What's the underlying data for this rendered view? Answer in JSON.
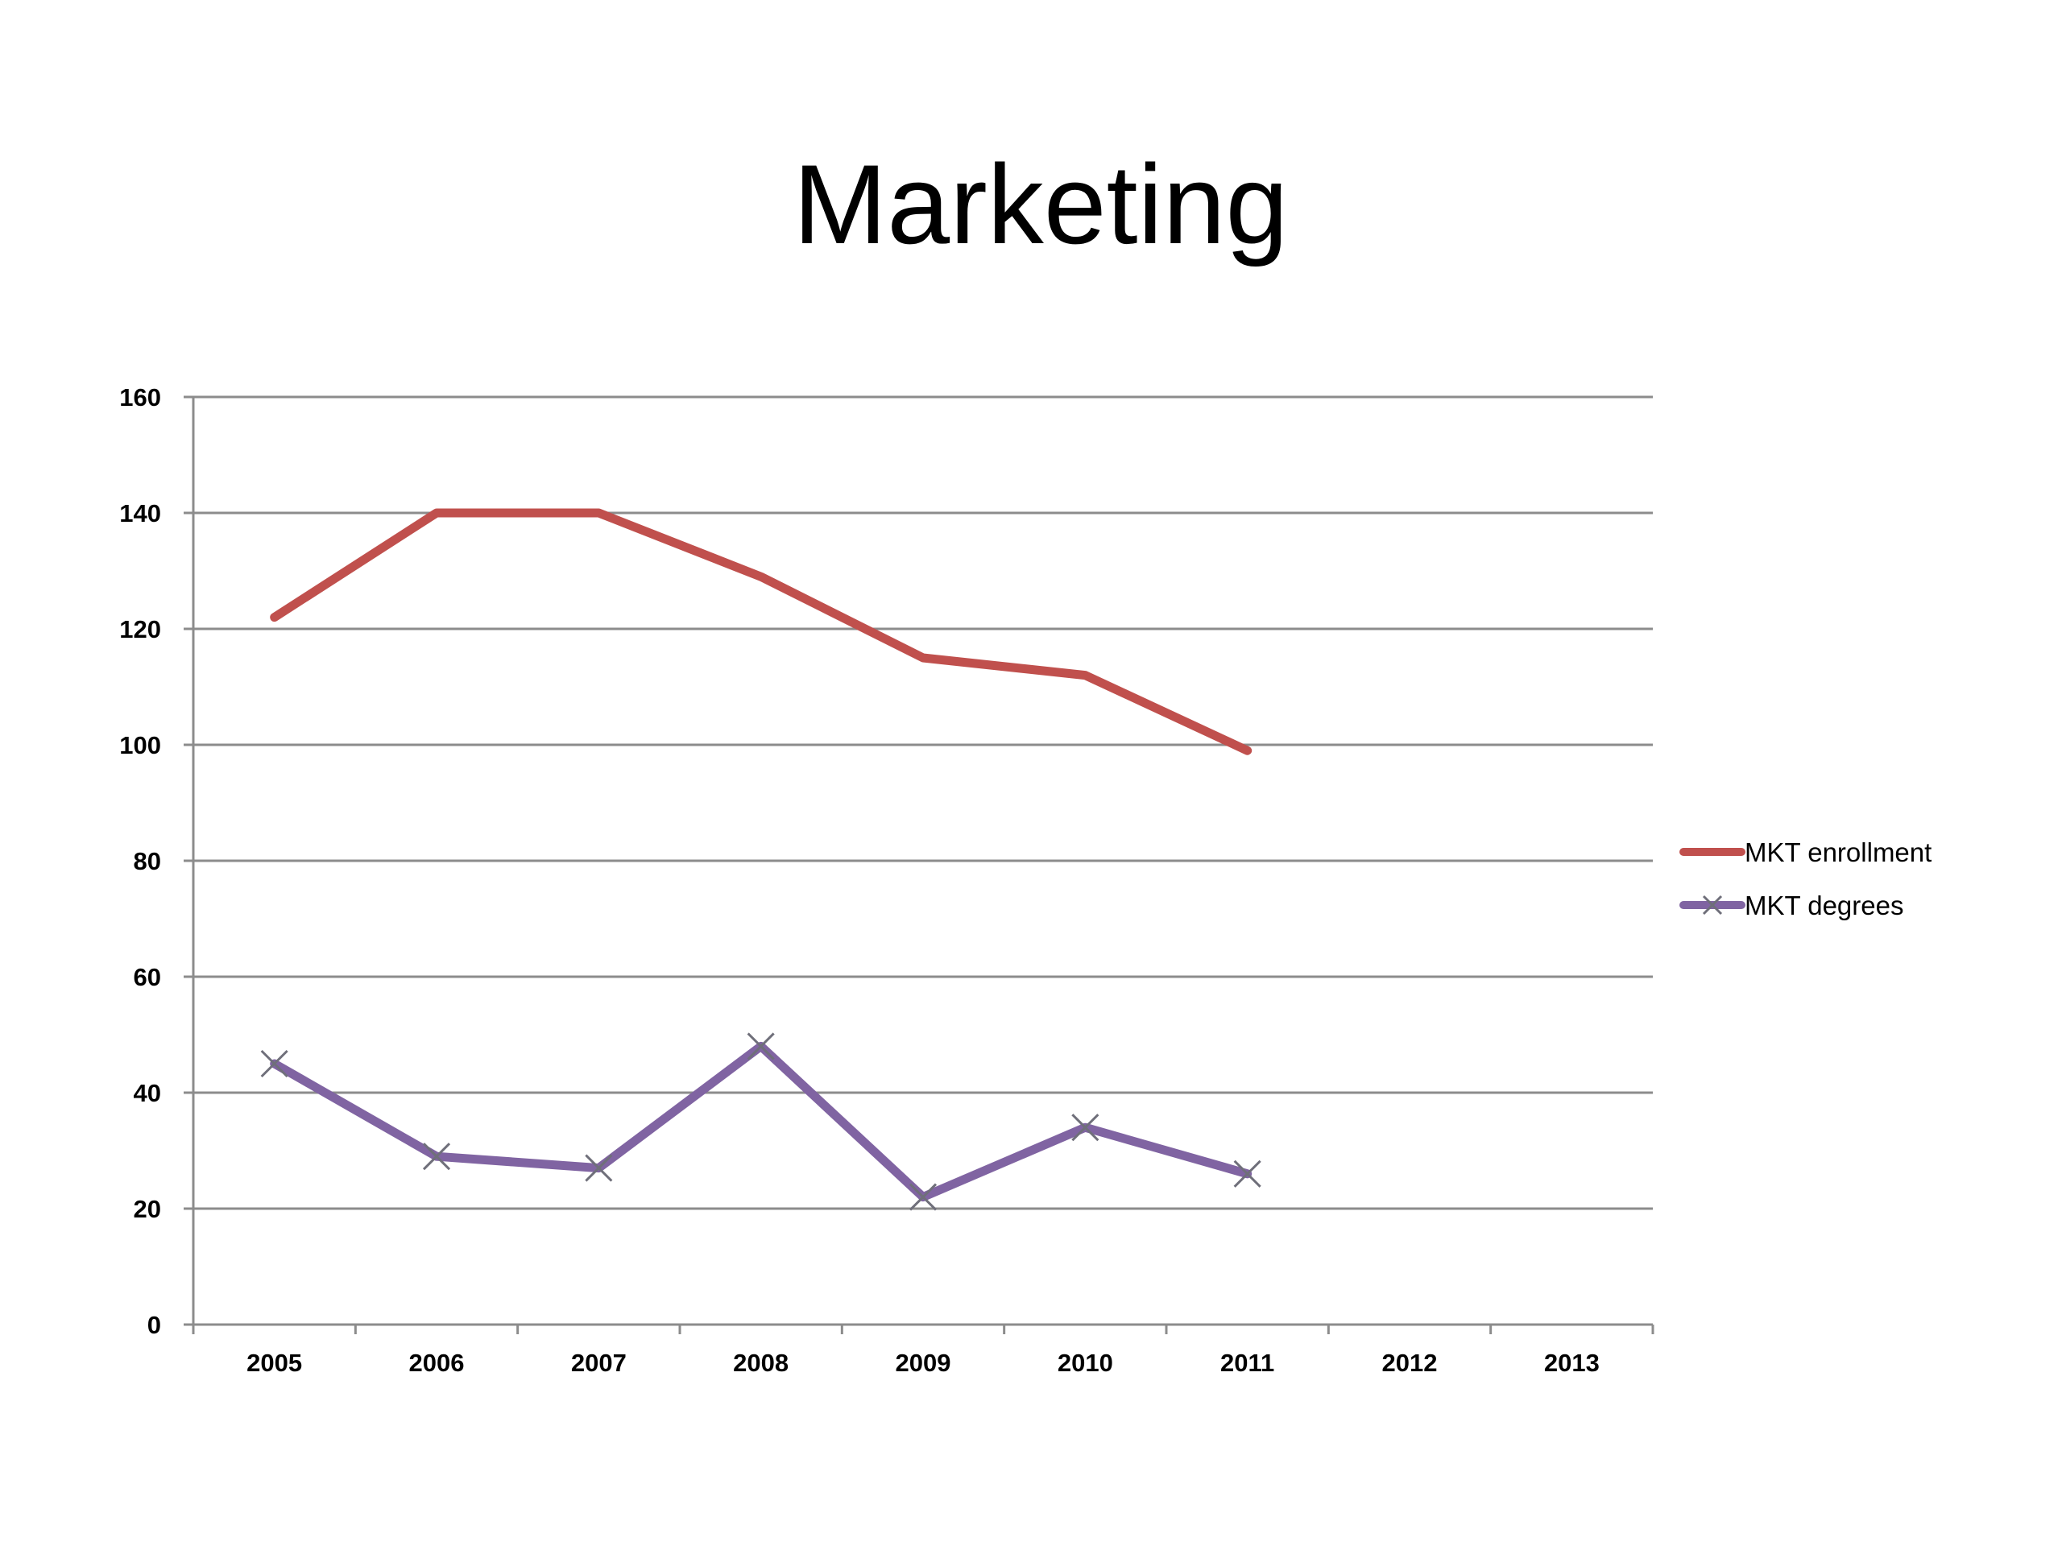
{
  "chart_data": {
    "type": "line",
    "title": "Marketing",
    "xlabel": "",
    "ylabel": "",
    "categories": [
      "2005",
      "2006",
      "2007",
      "2008",
      "2009",
      "2010",
      "2011",
      "2012",
      "2013"
    ],
    "ylim": [
      0,
      160
    ],
    "yticks": [
      "0",
      "20",
      "40",
      "60",
      "80",
      "100",
      "120",
      "140",
      "160"
    ],
    "grid": true,
    "legend_position": "right",
    "series": [
      {
        "name": "MKT enrollment",
        "color": "#c0504d",
        "marker": "none",
        "values": [
          122,
          140,
          140,
          129,
          115,
          112,
          99,
          null,
          null
        ]
      },
      {
        "name": "MKT degrees",
        "color": "#8064a2",
        "marker": "x",
        "values": [
          45,
          29,
          27,
          48,
          22,
          34,
          26,
          null,
          null
        ]
      }
    ]
  }
}
